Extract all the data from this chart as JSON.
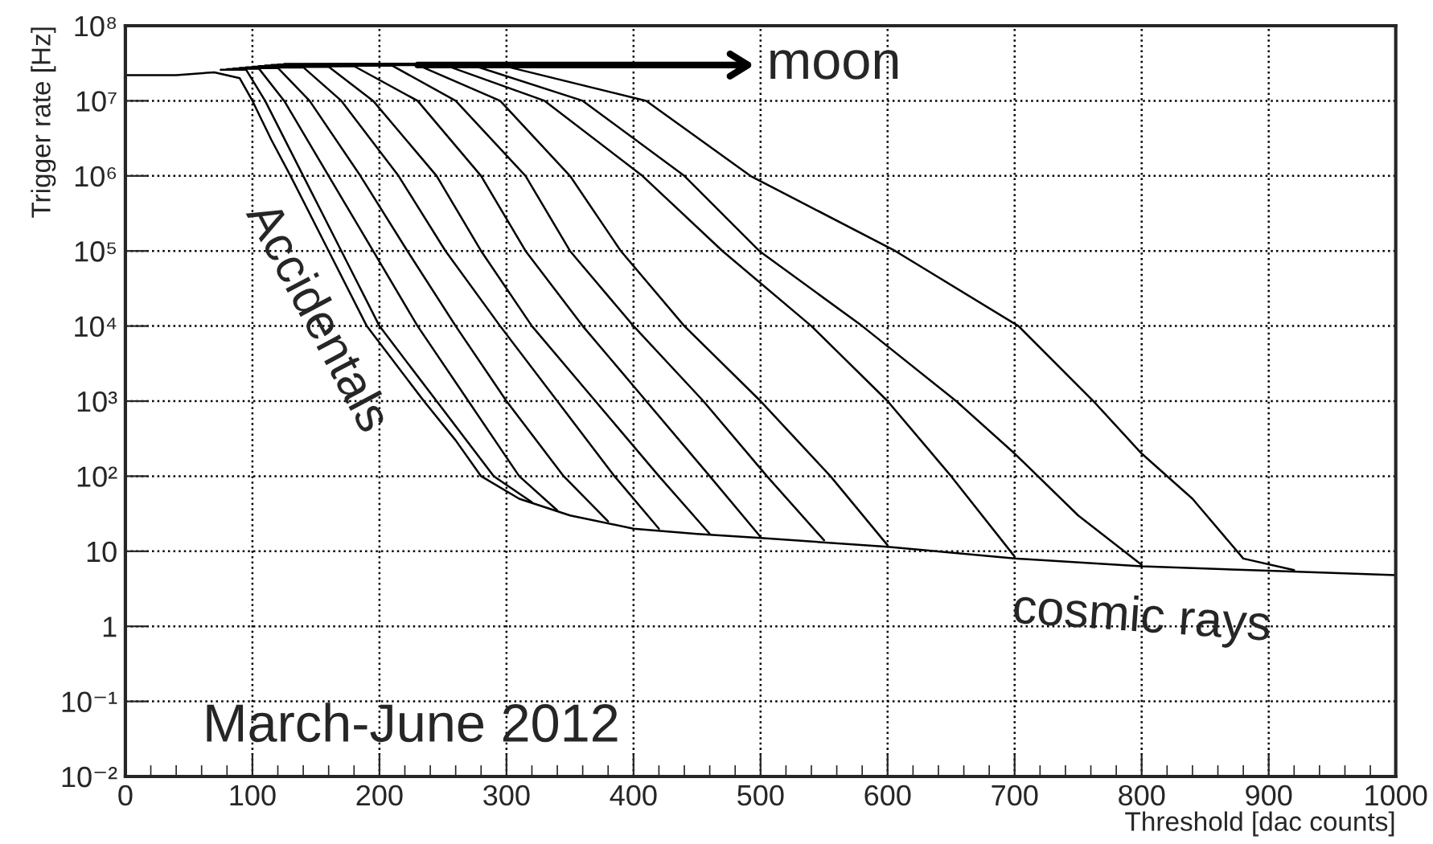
{
  "chart_data": {
    "type": "line",
    "xlabel": "Threshold [dac counts]",
    "ylabel": "Trigger rate [Hz]",
    "xlim": [
      0,
      1000
    ],
    "xticks": [
      0,
      100,
      200,
      300,
      400,
      500,
      600,
      700,
      800,
      900,
      1000
    ],
    "ylim": [
      0.01,
      100000000
    ],
    "log": "y",
    "yticks": [
      {
        "value": 0.01,
        "label": "10⁻²"
      },
      {
        "value": 0.1,
        "label": "10⁻¹"
      },
      1,
      10,
      {
        "value": 100,
        "label": "10²"
      },
      {
        "value": 1000,
        "label": "10³"
      },
      {
        "value": 10000,
        "label": "10⁴"
      },
      {
        "value": 100000,
        "label": "10⁵"
      },
      {
        "value": 1000000,
        "label": "10⁶"
      },
      {
        "value": 10000000,
        "label": "10⁷"
      },
      {
        "value": 100000000,
        "label": "10⁸"
      }
    ],
    "grid": true,
    "line_style": "solid",
    "marker": "none",
    "annotations": [
      {
        "text": "moon",
        "x": 230,
        "y": 30000000
      },
      "Accidentals",
      "cosmic rays",
      "March-June 2012"
    ],
    "series": [
      {
        "color": "#000000",
        "x": [
          0,
          40,
          70,
          90,
          100,
          115,
          130,
          160,
          190,
          235,
          260,
          280,
          310,
          350,
          400,
          450,
          500,
          600,
          700,
          800,
          900,
          1000
        ],
        "values": [
          22000000,
          22000000,
          24000000,
          20000000,
          10000000,
          3000000,
          1000000,
          100000,
          10000,
          1000,
          300,
          100,
          50,
          30,
          20,
          17,
          15,
          11.5,
          8,
          6.3,
          5.5,
          4.8
        ]
      },
      {
        "color": "#000000",
        "x": [
          75,
          95,
          110,
          140,
          170,
          200,
          245,
          290,
          320
        ],
        "values": [
          26000000,
          26000000,
          10000000,
          1000000,
          100000,
          10000,
          1000,
          100,
          45
        ]
      },
      {
        "color": "#000000",
        "x": [
          80,
          105,
          125,
          160,
          195,
          230,
          270,
          310,
          340
        ],
        "values": [
          26500000,
          27000000,
          10000000,
          1000000,
          100000,
          10000,
          1000,
          100,
          35
        ]
      },
      {
        "color": "#000000",
        "x": [
          85,
          120,
          145,
          185,
          222,
          260,
          300,
          345,
          380
        ],
        "values": [
          27000000,
          27500000,
          10000000,
          1000000,
          100000,
          10000,
          1000,
          100,
          25
        ]
      },
      {
        "color": "#000000",
        "x": [
          90,
          140,
          170,
          215,
          252,
          295,
          340,
          385,
          420
        ],
        "values": [
          27500000,
          28000000,
          10000000,
          1000000,
          100000,
          10000,
          1000,
          100,
          20
        ]
      },
      {
        "color": "#000000",
        "x": [
          95,
          160,
          195,
          245,
          280,
          320,
          370,
          420,
          460
        ],
        "values": [
          28000000,
          28500000,
          10000000,
          1000000,
          100000,
          10000,
          1000,
          100,
          17
        ]
      },
      {
        "color": "#000000",
        "x": [
          100,
          180,
          230,
          280,
          315,
          360,
          410,
          460,
          500
        ],
        "values": [
          28500000,
          29000000,
          10000000,
          1000000,
          100000,
          10000,
          1000,
          100,
          15.5
        ]
      },
      {
        "color": "#000000",
        "x": [
          105,
          210,
          260,
          315,
          350,
          400,
          455,
          505,
          550
        ],
        "values": [
          29000000,
          29500000,
          10000000,
          1000000,
          100000,
          10000,
          1000,
          100,
          14
        ]
      },
      {
        "color": "#000000",
        "x": [
          110,
          230,
          295,
          350,
          390,
          440,
          500,
          555,
          600
        ],
        "values": [
          29500000,
          30000000,
          10000000,
          1000000,
          100000,
          10000,
          1000,
          100,
          12
        ]
      },
      {
        "color": "#000000",
        "x": [
          115,
          250,
          330,
          407,
          470,
          540,
          600,
          650,
          700
        ],
        "values": [
          30000000,
          30500000,
          10000000,
          1000000,
          100000,
          10000,
          1000,
          100,
          8.5
        ]
      },
      {
        "color": "#000000",
        "x": [
          120,
          270,
          360,
          440,
          499,
          580,
          654,
          700,
          750,
          800
        ],
        "values": [
          30500000,
          31000000,
          10000000,
          1000000,
          100000,
          10000,
          1000,
          200,
          30,
          6.6
        ]
      },
      {
        "color": "#000000",
        "x": [
          125,
          290,
          410,
          492,
          606,
          703,
          762,
          800,
          840,
          880,
          920
        ],
        "values": [
          31000000,
          31500000,
          10000000,
          1000000,
          100000,
          10000,
          1000,
          200,
          50,
          8,
          5.6
        ]
      }
    ]
  }
}
